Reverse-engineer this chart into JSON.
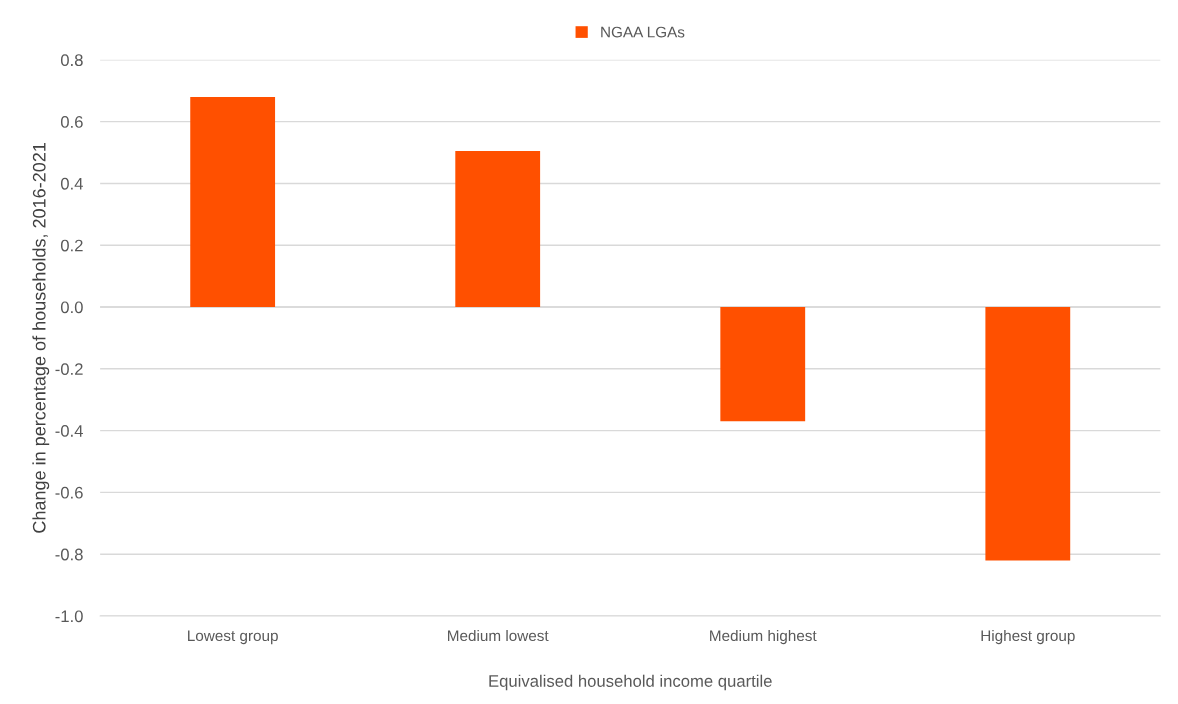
{
  "chart_data": {
    "type": "bar",
    "xlabel": "Equivalised household income quartile",
    "ylabel": "Change in percentage of households, 2016-2021",
    "categories": [
      "Lowest group",
      "Medium lowest",
      "Medium highest",
      "Highest group"
    ],
    "series": [
      {
        "name": "NGAA LGAs",
        "color": "#ff5000",
        "values": [
          0.68,
          0.505,
          -0.37,
          -0.82
        ]
      }
    ],
    "ylim": [
      -1.0,
      0.8
    ],
    "yticks": [
      {
        "value": -1.0,
        "label": "-1.0"
      },
      {
        "value": -0.8,
        "label": "-0.8"
      },
      {
        "value": -0.6,
        "label": "-0.6"
      },
      {
        "value": -0.4,
        "label": "-0.4"
      },
      {
        "value": -0.2,
        "label": "-0.2"
      },
      {
        "value": 0.0,
        "label": "0.0"
      },
      {
        "value": 0.2,
        "label": "0.2"
      },
      {
        "value": 0.4,
        "label": "0.4"
      },
      {
        "value": 0.6,
        "label": "0.6"
      },
      {
        "value": 0.8,
        "label": "0.8"
      }
    ],
    "grid": "y",
    "legend": "top"
  }
}
